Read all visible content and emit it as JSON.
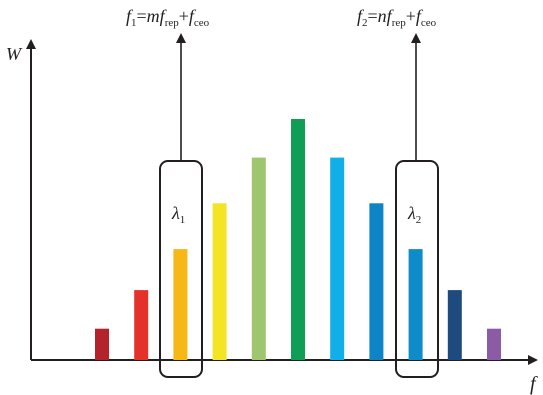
{
  "diagram": {
    "y_axis_label": "W",
    "x_axis_label": "f",
    "comb_lines": [
      {
        "relative_height": 0.13,
        "color": "#b5232a"
      },
      {
        "relative_height": 0.29,
        "color": "#e4322b"
      },
      {
        "relative_height": 0.46,
        "color": "#f6b817"
      },
      {
        "relative_height": 0.65,
        "color": "#f4e426"
      },
      {
        "relative_height": 0.84,
        "color": "#9dc66e"
      },
      {
        "relative_height": 1.0,
        "color": "#0e9e56"
      },
      {
        "relative_height": 0.84,
        "color": "#11aee8"
      },
      {
        "relative_height": 0.65,
        "color": "#0d84c6"
      },
      {
        "relative_height": 0.46,
        "color": "#0e8bc9"
      },
      {
        "relative_height": 0.29,
        "color": "#1e4b7e"
      },
      {
        "relative_height": 0.13,
        "color": "#8b5ba5"
      }
    ],
    "selected": [
      {
        "line_index": 2,
        "wavelength_label": "λ",
        "wavelength_sub": "1",
        "equation": {
          "lhs": "f",
          "lhs_sub": "1",
          "eq": "=",
          "mult": "m",
          "f_rep": "f",
          "rep_sub": "rep",
          "plus": "+",
          "f_ceo": "f",
          "ceo_sub": "ceo"
        }
      },
      {
        "line_index": 8,
        "wavelength_label": "λ",
        "wavelength_sub": "2",
        "equation": {
          "lhs": "f",
          "lhs_sub": "2",
          "eq": "=",
          "mult": "n",
          "f_rep": "f",
          "rep_sub": "rep",
          "plus": "+",
          "f_ceo": "f",
          "ceo_sub": "ceo"
        }
      }
    ]
  }
}
